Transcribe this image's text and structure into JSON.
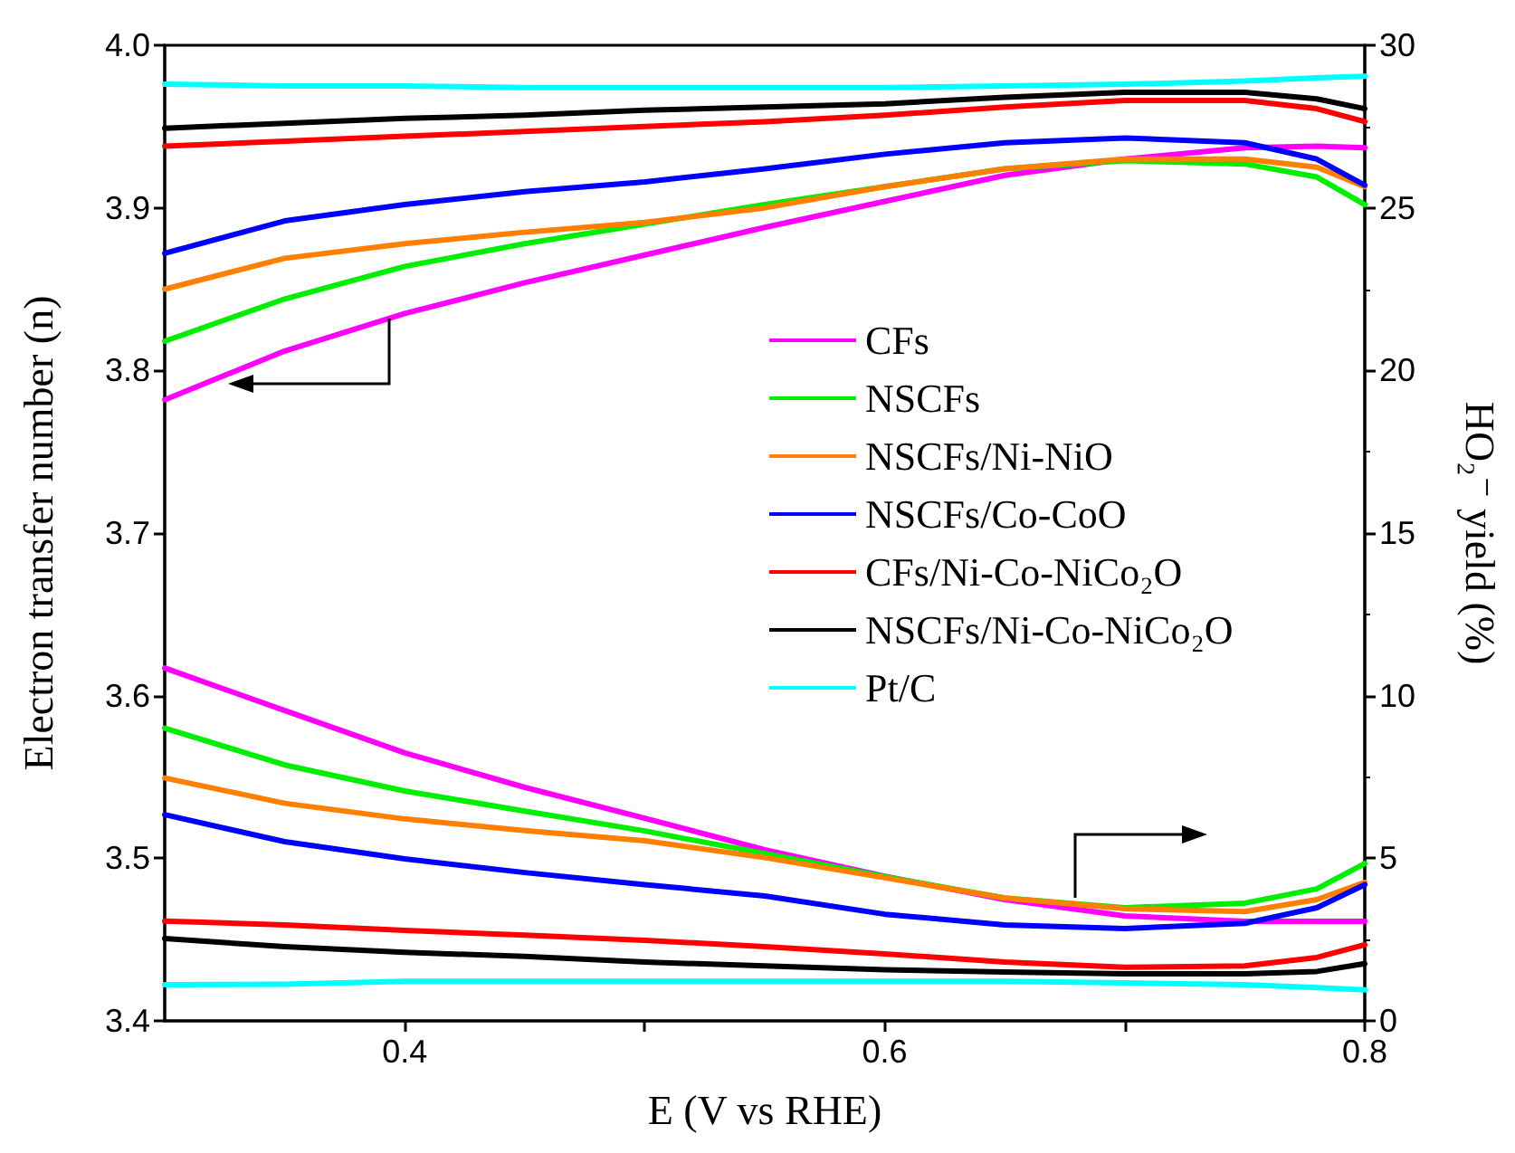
{
  "chart_data": {
    "type": "line",
    "xlabel": "E (V vs RHE)",
    "ylabel": "Electron transfer number (n)",
    "y2label": "HO₂⁻ yield (%)",
    "x": [
      0.3,
      0.35,
      0.4,
      0.45,
      0.5,
      0.55,
      0.6,
      0.65,
      0.7,
      0.75,
      0.78,
      0.8
    ],
    "xlim": [
      0.3,
      0.8
    ],
    "xticks": [
      0.4,
      {
        "value": 0.5,
        "label": null
      },
      0.6,
      {
        "value": 0.7,
        "label": null
      },
      0.8
    ],
    "ylim": [
      3.4,
      4.0
    ],
    "yticks": [
      3.4,
      3.5,
      3.6,
      3.7,
      3.8,
      3.9,
      {
        "value": 4.0,
        "label": "4.0"
      }
    ],
    "y2lim": [
      0,
      30
    ],
    "y2ticks": [
      0,
      5,
      10,
      15,
      20,
      25,
      30
    ],
    "legend": "right",
    "grid": false,
    "series": [
      {
        "name": "CFs",
        "color": "#ff00ff",
        "values": [
          3.782,
          3.812,
          3.835,
          3.854,
          3.871,
          3.888,
          3.904,
          3.92,
          3.93,
          3.937,
          3.938,
          3.937
        ]
      },
      {
        "name": "NSCFs",
        "color": "#00ee00",
        "values": [
          3.818,
          3.844,
          3.864,
          3.878,
          3.89,
          3.902,
          3.913,
          3.924,
          3.929,
          3.927,
          3.919,
          3.902
        ]
      },
      {
        "name": "NSCFs/Ni-NiO",
        "color": "#ff8000",
        "values": [
          3.85,
          3.869,
          3.878,
          3.885,
          3.891,
          3.9,
          3.913,
          3.924,
          3.93,
          3.93,
          3.925,
          3.913
        ]
      },
      {
        "name": "NSCFs/Co-CoO",
        "color": "#0000ff",
        "values": [
          3.872,
          3.892,
          3.902,
          3.91,
          3.916,
          3.924,
          3.933,
          3.94,
          3.943,
          3.94,
          3.93,
          3.914
        ]
      },
      {
        "name": "CFs/Ni-Co-NiCo₂O",
        "color": "#ff0000",
        "values": [
          3.938,
          3.941,
          3.944,
          3.947,
          3.95,
          3.953,
          3.957,
          3.962,
          3.966,
          3.966,
          3.961,
          3.953
        ]
      },
      {
        "name": "NSCFs/Ni-Co-NiCo₂O",
        "color": "#000000",
        "values": [
          3.949,
          3.952,
          3.955,
          3.957,
          3.96,
          3.962,
          3.964,
          3.968,
          3.971,
          3.971,
          3.967,
          3.961
        ]
      },
      {
        "name": "Pt/C",
        "color": "#00ffff",
        "values": [
          3.976,
          3.975,
          3.975,
          3.974,
          3.974,
          3.974,
          3.974,
          3.975,
          3.976,
          3.978,
          3.98,
          3.981
        ]
      },
      {
        "color": "#ff00ff",
        "axis": "y2",
        "values": [
          10.85,
          9.54,
          8.24,
          7.18,
          6.23,
          5.26,
          4.45,
          3.73,
          3.23,
          3.06,
          3.06,
          3.06
        ]
      },
      {
        "color": "#00ee00",
        "axis": "y2",
        "values": [
          9.0,
          7.87,
          7.07,
          6.45,
          5.84,
          5.14,
          4.43,
          3.78,
          3.48,
          3.62,
          4.06,
          4.84
        ]
      },
      {
        "color": "#ff8000",
        "axis": "y2",
        "values": [
          7.47,
          6.69,
          6.21,
          5.85,
          5.54,
          5.02,
          4.4,
          3.78,
          3.45,
          3.36,
          3.73,
          4.26
        ]
      },
      {
        "color": "#0000ff",
        "axis": "y2",
        "values": [
          6.34,
          5.51,
          4.98,
          4.56,
          4.19,
          3.84,
          3.28,
          2.95,
          2.84,
          3.0,
          3.48,
          4.19
        ]
      },
      {
        "color": "#ff0000",
        "axis": "y2",
        "values": [
          3.07,
          2.95,
          2.78,
          2.64,
          2.48,
          2.28,
          2.06,
          1.81,
          1.65,
          1.69,
          1.95,
          2.34
        ]
      },
      {
        "color": "#000000",
        "axis": "y2",
        "values": [
          2.53,
          2.28,
          2.11,
          1.98,
          1.81,
          1.69,
          1.57,
          1.5,
          1.45,
          1.45,
          1.52,
          1.76
        ]
      },
      {
        "color": "#00ffff",
        "axis": "y2",
        "values": [
          1.11,
          1.13,
          1.22,
          1.22,
          1.22,
          1.22,
          1.22,
          1.22,
          1.17,
          1.11,
          1.02,
          0.95
        ]
      }
    ]
  }
}
